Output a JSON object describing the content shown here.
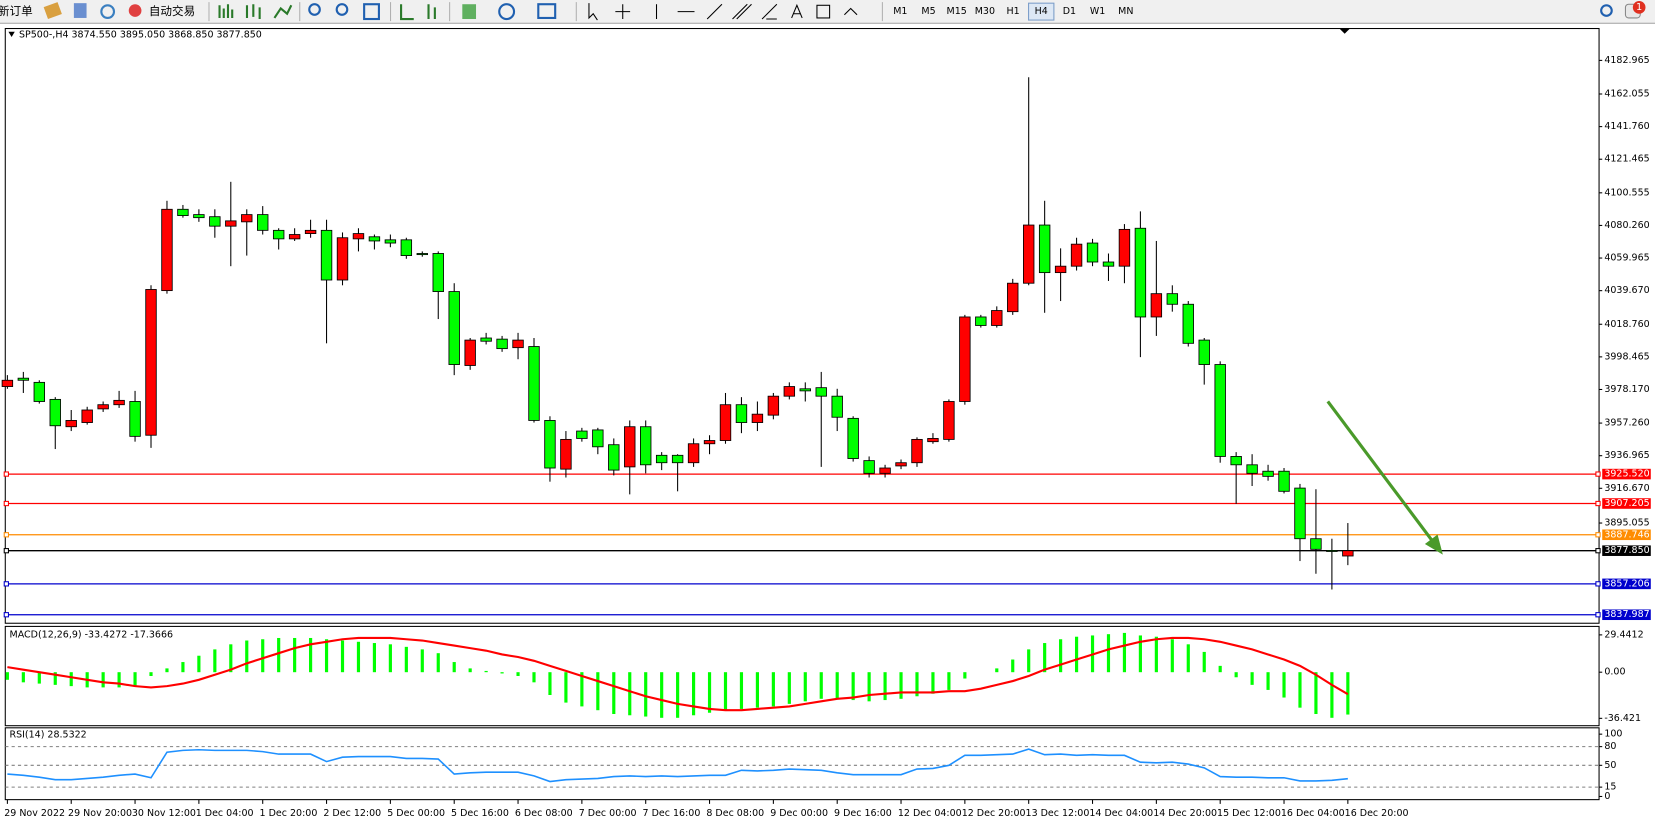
{
  "toolbar": {
    "buttons": [
      "新订单",
      "自动交易"
    ],
    "timeframes": [
      "M1",
      "M5",
      "M15",
      "M30",
      "H1",
      "H4",
      "D1",
      "W1",
      "MN"
    ],
    "active_timeframe": "H4",
    "badge": "1"
  },
  "chart_data": [
    {
      "type": "candlestick",
      "title": "SP500-,H4  3874.550 3895.050 3868.850 3877.850",
      "up_color": "#ff0000",
      "down_color": "#00ff00",
      "categories": [
        "29 Nov 2022",
        null,
        null,
        null,
        "29 Nov 20:00",
        null,
        null,
        null,
        "30 Nov 12:00",
        null,
        null,
        null,
        "1 Dec 04:00",
        null,
        null,
        null,
        "1 Dec 20:00",
        null,
        null,
        null,
        "2 Dec 12:00",
        null,
        null,
        null,
        "5 Dec 00:00",
        null,
        null,
        null,
        "5 Dec 16:00",
        null,
        null,
        null,
        "6 Dec 08:00",
        null,
        null,
        null,
        "7 Dec 00:00",
        null,
        null,
        null,
        "7 Dec 16:00",
        null,
        null,
        null,
        "8 Dec 08:00",
        null,
        null,
        null,
        "9 Dec 00:00",
        null,
        null,
        null,
        "9 Dec 16:00",
        null,
        null,
        null,
        "12 Dec 04:00",
        null,
        null,
        null,
        "12 Dec 20:00",
        null,
        null,
        null,
        "13 Dec 12:00",
        null,
        null,
        null,
        "14 Dec 04:00",
        null,
        null,
        null,
        "14 Dec 20:00",
        null,
        null,
        null,
        "15 Dec 12:00",
        null,
        null,
        null,
        "16 Dec 04:00",
        null,
        null,
        null,
        "16 Dec 20:00"
      ],
      "open": [
        3980.0,
        3985.2,
        3982.6,
        3972.0,
        3955.0,
        3957.6,
        3966.1,
        3968.7,
        3970.7,
        3949.7,
        4039.7,
        4090.3,
        4087.0,
        4085.7,
        4079.8,
        4082.5,
        4087.0,
        4077.2,
        4071.9,
        4075.2,
        4077.2,
        4046.3,
        4071.9,
        4073.2,
        4071.3,
        4071.3,
        4062.8,
        4062.8,
        4039.1,
        3993.1,
        4010.2,
        4009.5,
        4004.2,
        4004.9,
        3958.9,
        3928.6,
        3952.3,
        3953.0,
        3943.8,
        3930.0,
        3955.0,
        3937.2,
        3937.2,
        3932.6,
        3944.4,
        3946.4,
        3968.7,
        3957.6,
        3962.2,
        3974.0,
        3978.6,
        3979.3,
        3974.0,
        3960.2,
        3933.9,
        3926.0,
        3930.6,
        3932.6,
        3945.7,
        3947.1,
        3970.7,
        4023.3,
        4018.0,
        4026.6,
        4044.3,
        4080.5,
        4050.9,
        4054.9,
        4069.3,
        4057.5,
        4054.9,
        4078.5,
        4023.3,
        4037.8,
        4031.2,
        4008.9,
        3993.7,
        3936.5,
        3931.3,
        3927.3,
        3927.3,
        3916.8,
        3885.3,
        3878.0,
        3874.55
      ],
      "high": [
        3987.1,
        3989.1,
        3983.9,
        3973.4,
        3965.4,
        3967.4,
        3970.7,
        3977.3,
        3977.3,
        4043.0,
        4095.6,
        4093.0,
        4090.3,
        4090.3,
        4107.4,
        4090.3,
        4092.3,
        4078.5,
        4078.5,
        4083.8,
        4083.8,
        4075.9,
        4078.5,
        4074.6,
        4074.6,
        4072.6,
        4064.1,
        4064.1,
        4044.3,
        4010.2,
        4013.4,
        4011.5,
        4013.4,
        4010.2,
        3961.5,
        3952.3,
        3954.3,
        3954.3,
        3947.7,
        3958.9,
        3958.9,
        3939.2,
        3937.9,
        3947.7,
        3949.7,
        3976.0,
        3973.4,
        3970.7,
        3976.0,
        3982.6,
        3982.6,
        3989.1,
        3978.6,
        3961.5,
        3936.5,
        3931.3,
        3934.6,
        3948.4,
        3951.0,
        3972.0,
        4024.6,
        4024.6,
        4029.9,
        4047.0,
        4172.5,
        4095.6,
        4066.0,
        4072.6,
        4071.9,
        4062.8,
        4081.1,
        4089.0,
        4070.6,
        4043.0,
        4033.2,
        4010.2,
        3995.7,
        3939.2,
        3937.9,
        3931.3,
        3929.3,
        3919.4,
        3916.1,
        3885.3,
        3895.05
      ],
      "low": [
        3978.6,
        3976.0,
        3969.4,
        3941.1,
        3952.3,
        3956.3,
        3964.2,
        3966.7,
        3945.7,
        3941.8,
        4037.8,
        4085.1,
        4082.5,
        4072.6,
        4054.9,
        4061.5,
        4074.6,
        4065.3,
        4070.6,
        4072.6,
        4006.9,
        4043.0,
        4064.1,
        4065.3,
        4066.7,
        4059.5,
        4060.8,
        4022.0,
        3987.1,
        3990.4,
        4006.2,
        4001.6,
        3997.0,
        3957.6,
        3920.8,
        3923.4,
        3945.7,
        3937.9,
        3924.7,
        3912.9,
        3926.0,
        3928.0,
        3914.8,
        3930.0,
        3937.9,
        3944.4,
        3951.0,
        3952.3,
        3959.6,
        3972.0,
        3970.7,
        3930.0,
        3952.3,
        3933.3,
        3923.4,
        3923.4,
        3928.6,
        3930.0,
        3944.4,
        3945.7,
        3968.7,
        4016.7,
        4016.7,
        4024.6,
        4043.0,
        4025.9,
        4033.2,
        4052.2,
        4054.9,
        4045.7,
        4044.3,
        3998.3,
        4011.5,
        4026.6,
        4004.9,
        3981.2,
        3932.6,
        3907.0,
        3918.1,
        3921.4,
        3913.5,
        3871.4,
        3863.5,
        3853.7,
        3868.85
      ],
      "close": [
        3983.9,
        3983.9,
        3970.7,
        3955.6,
        3958.9,
        3965.4,
        3968.7,
        3971.4,
        3949.0,
        4040.4,
        4090.3,
        4086.4,
        4085.1,
        4079.8,
        4083.1,
        4087.0,
        4077.2,
        4071.9,
        4074.6,
        4077.2,
        4046.3,
        4072.6,
        4075.2,
        4070.6,
        4069.3,
        4061.5,
        4062.1,
        4039.1,
        3993.7,
        4008.9,
        4008.2,
        4003.6,
        4008.9,
        3958.9,
        3929.3,
        3947.1,
        3947.7,
        3942.5,
        3928.0,
        3955.0,
        3931.3,
        3932.6,
        3932.6,
        3944.4,
        3946.4,
        3968.7,
        3957.6,
        3962.8,
        3974.0,
        3980.0,
        3977.3,
        3974.0,
        3960.9,
        3935.2,
        3926.0,
        3929.3,
        3932.6,
        3947.1,
        3947.7,
        3970.7,
        4023.3,
        4018.0,
        4027.3,
        4044.3,
        4080.5,
        4050.9,
        4054.9,
        4068.6,
        4057.5,
        4054.9,
        4077.8,
        4023.3,
        4037.8,
        4031.2,
        4006.9,
        3993.7,
        3936.5,
        3931.3,
        3926.0,
        3924.1,
        3914.8,
        3885.3,
        3878.7,
        3877.4,
        3877.85
      ],
      "ylim": [
        3832.7,
        4202.8
      ],
      "yticks": [
        {
          "value": 4182.965,
          "label": "4182.965"
        },
        {
          "value": 4162.055,
          "label": "4162.055"
        },
        {
          "value": 4141.76,
          "label": "4141.760"
        },
        {
          "value": 4121.465,
          "label": "4121.465"
        },
        {
          "value": 4100.555,
          "label": "4100.555"
        },
        {
          "value": 4080.26,
          "label": "4080.260"
        },
        {
          "value": 4059.965,
          "label": "4059.965"
        },
        {
          "value": 4039.67,
          "label": "4039.670"
        },
        {
          "value": 4018.76,
          "label": "4018.760"
        },
        {
          "value": 3998.465,
          "label": "3998.465"
        },
        {
          "value": 3978.17,
          "label": "3978.170"
        },
        {
          "value": 3957.26,
          "label": "3957.260"
        },
        {
          "value": 3936.965,
          "label": "3936.965"
        },
        {
          "value": 3916.67,
          "label": "3916.670"
        },
        {
          "value": 3895.055,
          "label": "3895.055"
        }
      ],
      "hlines": {
        "values": [
          3925.52,
          3907.205,
          3887.746,
          3877.85,
          3857.206,
          3837.987
        ],
        "value_labels": [
          "3925.520",
          "3907.205",
          "3887.746",
          "3877.850",
          "3857.206",
          "3837.987"
        ],
        "colors": [
          "#ff0000",
          "#ff0000",
          "#ff8c00",
          "#000000",
          "#0000cd",
          "#0000cd"
        ]
      }
    },
    {
      "type": "macd",
      "title": "MACD(12,26,9) -33.4272 -17.3666",
      "histogram": {
        "color": "#00ff00",
        "values": [
          -6,
          -8,
          -9,
          -10,
          -11,
          -12,
          -12,
          -12,
          -11,
          -3,
          3,
          8,
          13,
          18,
          22,
          25,
          26,
          27,
          27,
          27,
          26,
          25,
          24,
          23,
          22,
          20,
          18,
          15,
          8,
          3,
          1,
          -1,
          -3,
          -8,
          -18,
          -24,
          -27,
          -30,
          -33,
          -34,
          -35,
          -36,
          -36,
          -34,
          -32,
          -30,
          -29,
          -28,
          -27,
          -25,
          -23,
          -21,
          -21,
          -22,
          -23,
          -22,
          -21,
          -19,
          -17,
          -14,
          -5,
          0,
          3,
          10,
          18,
          23,
          26,
          28,
          29,
          30,
          31,
          29,
          28,
          26,
          22,
          16,
          5,
          -4,
          -10,
          -14,
          -20,
          -28,
          -33,
          -36,
          -33.4272
        ]
      },
      "signal": {
        "color": "#ff0000",
        "values": [
          4,
          2,
          0,
          -2,
          -4,
          -6,
          -8,
          -9,
          -11,
          -12,
          -11,
          -9,
          -6,
          -2,
          2,
          7,
          11,
          15,
          19,
          22,
          24,
          26,
          27,
          27,
          27,
          26,
          25,
          23,
          21,
          19,
          17,
          14,
          12,
          9,
          5,
          1,
          -3,
          -7,
          -11,
          -15,
          -19,
          -22,
          -25,
          -27,
          -29,
          -30,
          -30,
          -29,
          -28,
          -27,
          -25,
          -23,
          -21,
          -20,
          -18,
          -17,
          -16,
          -16,
          -16,
          -15,
          -15,
          -13,
          -10,
          -7,
          -3,
          2,
          6,
          10,
          14,
          18,
          21,
          24,
          26,
          27,
          27,
          26,
          24,
          21,
          18,
          14,
          10,
          5,
          -2,
          -10,
          -17.3666
        ]
      },
      "ylim": [
        -41.4,
        35.3
      ],
      "yticks": [
        29.4412,
        {
          "value": 0,
          "label": "0.00"
        },
        -36.421
      ]
    },
    {
      "type": "line",
      "title": "RSI(14) 28.5322",
      "color": "#1e90ff",
      "values": [
        36,
        34,
        31,
        27,
        27,
        29,
        31,
        34,
        36,
        30,
        71,
        74,
        75,
        74,
        74,
        74,
        72,
        68,
        68,
        68,
        56,
        63,
        64,
        64,
        64,
        61,
        61,
        60,
        36,
        38,
        39,
        39,
        39,
        33,
        24,
        27,
        28,
        29,
        32,
        33,
        32,
        33,
        32,
        33,
        34,
        34,
        42,
        41,
        42,
        44,
        43,
        42,
        38,
        35,
        35,
        35,
        35,
        44,
        45,
        50,
        66,
        66,
        67,
        68,
        76,
        67,
        68,
        66,
        67,
        66,
        66,
        55,
        54,
        55,
        52,
        46,
        32,
        31,
        31,
        30,
        30,
        25,
        25,
        26,
        28.5322
      ],
      "ylim": [
        0,
        100
      ],
      "yticks": [
        0,
        15,
        50,
        80,
        100
      ]
    }
  ]
}
